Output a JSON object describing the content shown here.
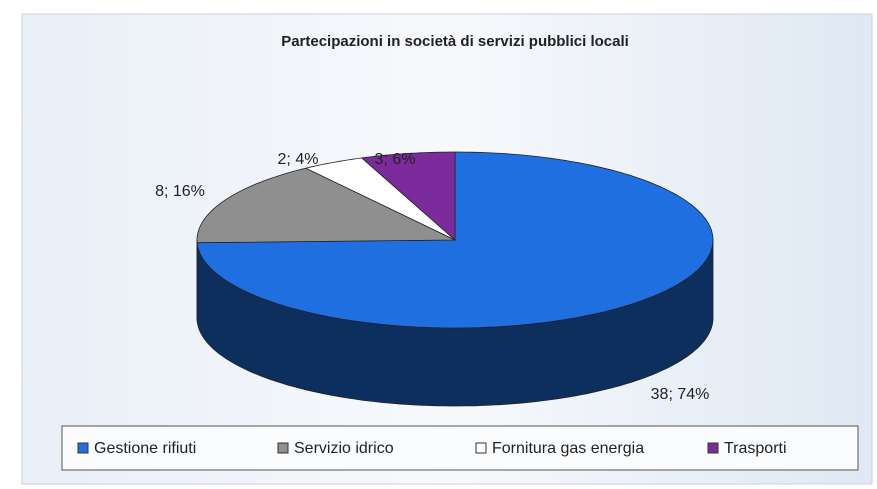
{
  "chart_data": {
    "type": "pie3d",
    "title": "Partecipazioni in società di servizi pubblici locali",
    "categories": [
      "Gestione rifiuti",
      "Servizio idrico",
      "Fornitura gas energia",
      "Trasporti"
    ],
    "values": [
      38,
      8,
      2,
      3
    ],
    "value_labels": [
      "38; 74%",
      "8; 16%",
      "2; 4%",
      "3; 6%"
    ],
    "colors": [
      "#1f6fe0",
      "#8f8f8f",
      "#ffffff",
      "#7b2b9c"
    ],
    "legend": "bottom"
  }
}
